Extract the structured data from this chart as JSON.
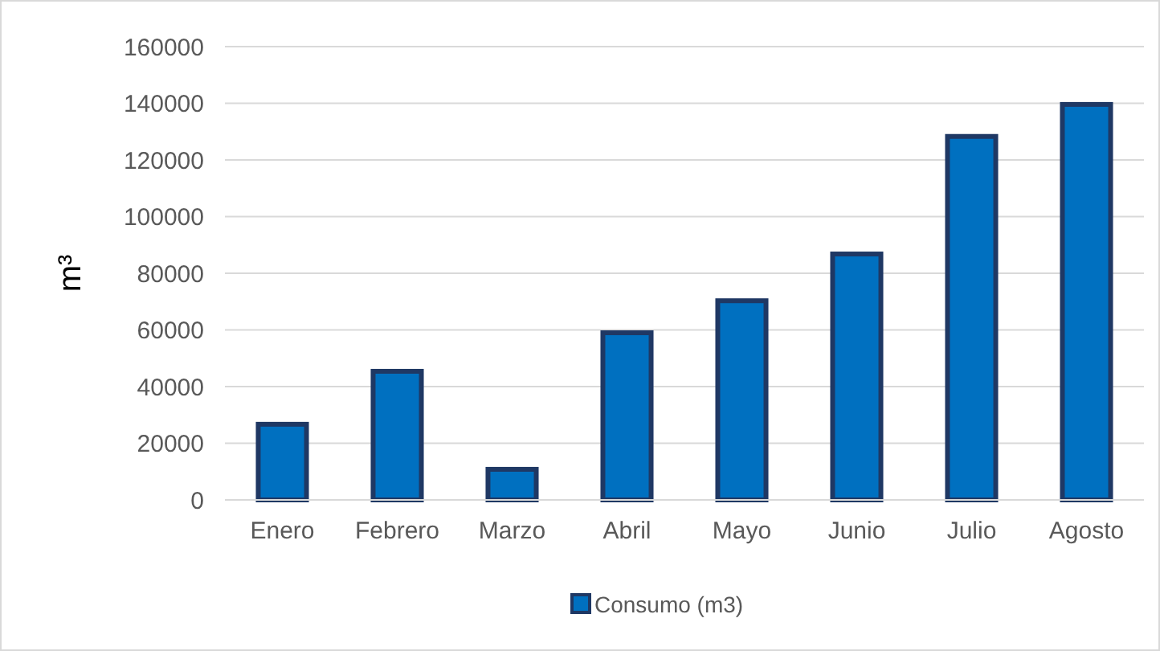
{
  "chart_data": {
    "type": "bar",
    "ylabel": "m³",
    "categories": [
      "Enero",
      "Febrero",
      "Marzo",
      "Abril",
      "Mayo",
      "Junio",
      "Julio",
      "Agosto"
    ],
    "series": [
      {
        "name": "Consumo (m3)",
        "color": "#0070c0",
        "values": [
          26700,
          45400,
          10800,
          59000,
          70300,
          86800,
          128300,
          139600
        ]
      }
    ],
    "ylim": [
      0,
      160000
    ],
    "yticks": [
      0,
      20000,
      40000,
      60000,
      80000,
      100000,
      120000,
      140000,
      160000
    ],
    "grid": "y",
    "legend": "bottom"
  }
}
